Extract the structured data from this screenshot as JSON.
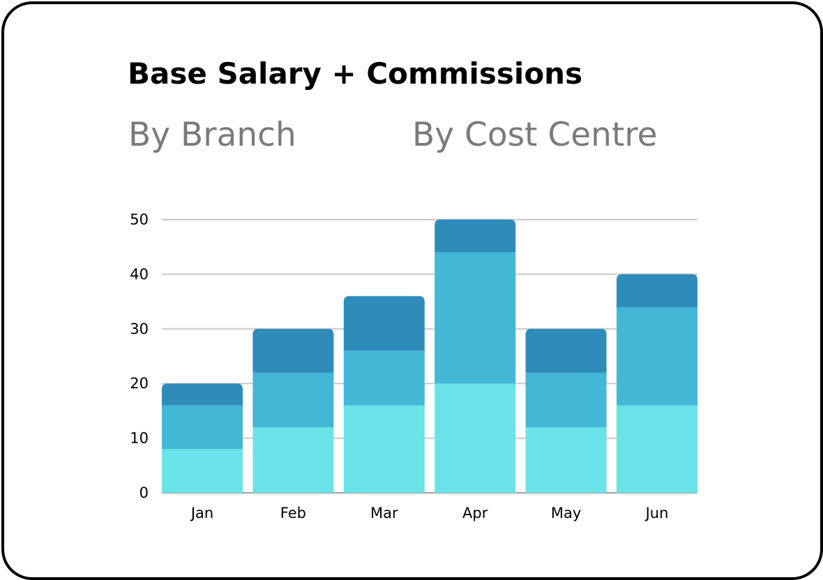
{
  "header": {
    "title": "Base Salary + Commissions"
  },
  "tabs": [
    {
      "label": "By Branch"
    },
    {
      "label": "By Cost Centre"
    }
  ],
  "chart_data": {
    "type": "bar",
    "stacked": true,
    "categories": [
      "Jan",
      "Feb",
      "Mar",
      "Apr",
      "May",
      "Jun"
    ],
    "series": [
      {
        "values": [
          8,
          12,
          16,
          20,
          12,
          16
        ],
        "color": "#6ae3e8"
      },
      {
        "values": [
          8,
          10,
          10,
          24,
          10,
          18
        ],
        "color": "#42b7d6"
      },
      {
        "values": [
          4,
          8,
          10,
          6,
          8,
          6
        ],
        "color": "#2e8bba"
      }
    ],
    "yticks": [
      0,
      10,
      20,
      30,
      40,
      50
    ],
    "ylim": [
      0,
      50
    ],
    "grid": true,
    "legend": "none",
    "colors": {
      "grid": "#c8c8c8",
      "baseline": "#a0a0a0"
    }
  }
}
